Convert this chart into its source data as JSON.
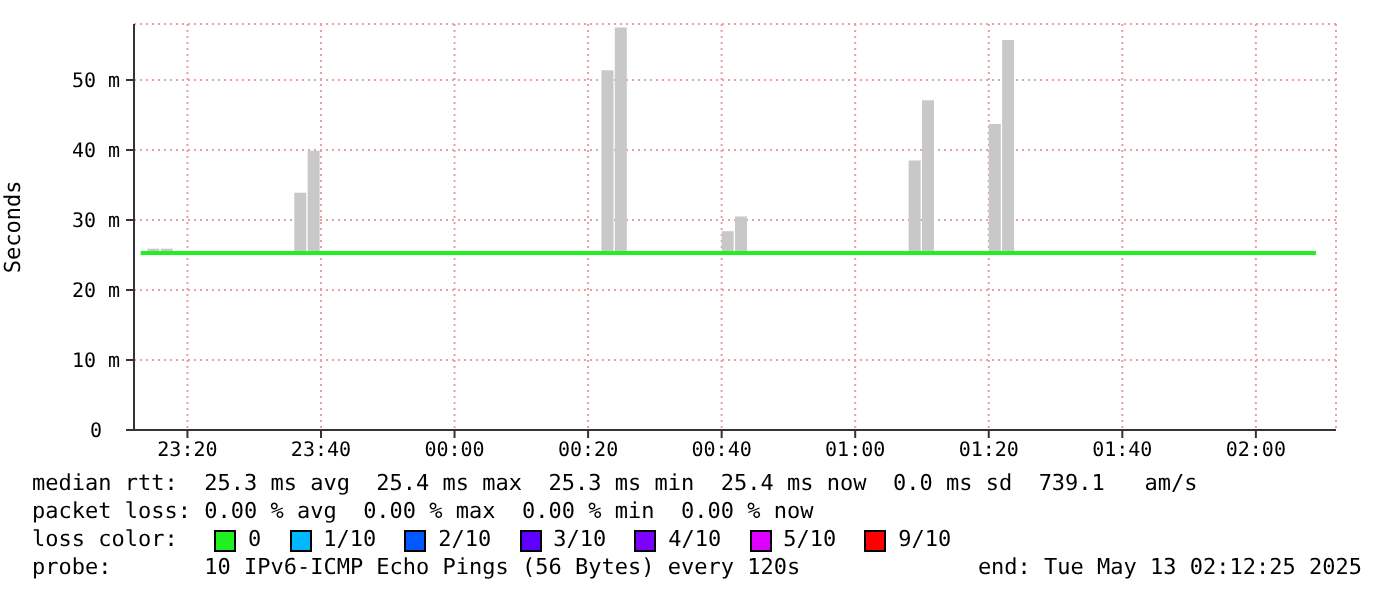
{
  "chart_data": {
    "type": "bar",
    "ylabel": "Seconds",
    "xlim": [
      "2025-05-12T23:12",
      "2025-05-13T02:12"
    ],
    "xticks": [
      {
        "value": "2025-05-12T23:20",
        "label": "23:20"
      },
      {
        "value": "2025-05-12T23:40",
        "label": "23:40"
      },
      {
        "value": "2025-05-13T00:00",
        "label": "00:00"
      },
      {
        "value": "2025-05-13T00:20",
        "label": "00:20"
      },
      {
        "value": "2025-05-13T00:40",
        "label": "00:40"
      },
      {
        "value": "2025-05-13T01:00",
        "label": "01:00"
      },
      {
        "value": "2025-05-13T01:20",
        "label": "01:20"
      },
      {
        "value": "2025-05-13T01:40",
        "label": "01:40"
      },
      {
        "value": "2025-05-13T02:00",
        "label": "02:00"
      }
    ],
    "ylim": [
      0,
      58
    ],
    "yticks": [
      0,
      {
        "value": 10,
        "label": "10 m"
      },
      {
        "value": 20,
        "label": "20 m"
      },
      {
        "value": 30,
        "label": "30 m"
      },
      {
        "value": 40,
        "label": "40 m"
      },
      {
        "value": 50,
        "label": "50 m"
      }
    ],
    "grid": true,
    "legend": "bottom",
    "legend_title": "loss color:",
    "series": [
      {
        "color": "#c8c8c8",
        "x": [
          "2025-05-12T23:15",
          "2025-05-12T23:17",
          "2025-05-12T23:37",
          "2025-05-12T23:39",
          "2025-05-13T00:23",
          "2025-05-13T00:25",
          "2025-05-13T00:41",
          "2025-05-13T00:43",
          "2025-05-13T01:09",
          "2025-05-13T01:11",
          "2025-05-13T01:21",
          "2025-05-13T01:23"
        ],
        "base": [
          25.4,
          25.4,
          25.4,
          25.4,
          25.4,
          25.4,
          25.4,
          25.4,
          25.4,
          25.4,
          25.4,
          25.4
        ],
        "values": [
          0.5,
          0.5,
          8.5,
          14.5,
          26,
          32.1,
          3,
          5.1,
          13.1,
          21.7,
          18.3,
          30.3
        ]
      },
      {
        "type": "line",
        "name": "0",
        "color": "#20f020",
        "x": [
          "2025-05-12T23:13",
          "2025-05-13T02:09"
        ],
        "values": [
          25.3,
          25.3
        ]
      },
      {
        "type": "line",
        "name": "1/10",
        "color": "#00b8ff"
      },
      {
        "type": "line",
        "name": "2/10",
        "color": "#0059ff"
      },
      {
        "type": "line",
        "name": "3/10",
        "color": "#5e00ff"
      },
      {
        "type": "line",
        "name": "4/10",
        "color": "#7e00ff"
      },
      {
        "type": "line",
        "name": "5/10",
        "color": "#dd00ff"
      },
      {
        "type": "line",
        "name": "9/10",
        "color": "#ff0000"
      }
    ],
    "annotations": [
      "median rtt:  25.3 ms avg  25.4 ms max  25.3 ms min  25.4 ms now  0.0 ms sd  739.1   am/s",
      "packet loss: 0.00 % avg  0.00 % max  0.00 % min  0.00 % now",
      "probe:       10 IPv6-ICMP Echo Pings (56 Bytes) every 120s",
      "end: Tue May 13 02:12:25 2025"
    ]
  }
}
